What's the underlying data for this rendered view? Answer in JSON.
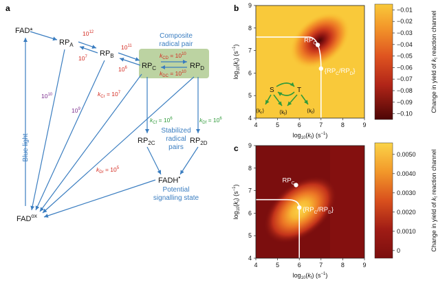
{
  "panel_a": {
    "label": "a",
    "fad_star": "FAD*",
    "fad_ox": "FAD",
    "fad_ox_sup": "ox",
    "rpa": "RP",
    "rpa_sub": "A",
    "rpb": "RP",
    "rpb_sub": "B",
    "rpc": "RP",
    "rpc_sub": "C",
    "rpd": "RP",
    "rpd_sub": "D",
    "rp2c": "RP",
    "rp2c_sub": "2C",
    "rp2d": "RP",
    "rp2d_sub": "2D",
    "fadh": "FADH",
    "fadh_sup": "•",
    "composite_1": "Composite",
    "composite_2": "radical pair",
    "stabilized_1": "Stabilized",
    "stabilized_2": "radical",
    "stabilized_3": "pairs",
    "potential_1": "Potential",
    "potential_2": "signalling state",
    "blue_light": "Blue light",
    "rate_ab": "10",
    "rate_ab_exp": "12",
    "rate_ba": "10",
    "rate_ba_exp": "7",
    "rate_bc": "10",
    "rate_bc_exp": "11",
    "rate_cb": "10",
    "rate_cb_exp": "6",
    "rate_a_ox": "10",
    "rate_a_ox_exp": "10",
    "rate_b_ox": "10",
    "rate_b_ox_exp": "9",
    "kcd": "k",
    "kcd_sub": "CD",
    "kcd_val": " = 10",
    "kcd_exp": "10",
    "kdc": "k",
    "kdc_sub": "DC",
    "kdc_val": " = 10",
    "kdc_exp": "10",
    "kcr": "k",
    "kcr_sub": "Cr",
    "kcr_val": " = 10",
    "kcr_exp": "7",
    "kcf": "k",
    "kcf_sub": "Cf",
    "kcf_val": " = 10",
    "kcf_exp": "6",
    "kdf": "k",
    "kdf_sub": "Df",
    "kdf_val": " = 10",
    "kdf_exp": "6",
    "kdr": "k",
    "kdr_sub": "Dr",
    "kdr_val": " = 10",
    "kdr_exp": "5"
  },
  "chart_data": [
    {
      "panel": "b",
      "type": "heatmap",
      "xlabel": "log10(kf) (s−1)",
      "ylabel": "log10(kr) (s−1)",
      "xlim": [
        4,
        9
      ],
      "ylim": [
        4,
        9
      ],
      "xticks": [
        "4",
        "5",
        "6",
        "7",
        "8",
        "9"
      ],
      "yticks": [
        "4",
        "5",
        "6",
        "7",
        "8",
        "9"
      ],
      "colorbar": {
        "label": "Change in yield of kf reaction channel",
        "ticks": [
          "−0.01",
          "−0.02",
          "−0.03",
          "−0.04",
          "−0.05",
          "−0.06",
          "−0.07",
          "−0.08",
          "−0.09",
          "−0.10"
        ],
        "range": [
          -0.105,
          -0.005
        ],
        "colors": [
          "#f9c93a",
          "#f7b330",
          "#f3972a",
          "#ec7625",
          "#df5420",
          "#cc3a1c",
          "#b12518",
          "#8f1512",
          "#6c0b0b",
          "#4d0505"
        ]
      },
      "points": [
        {
          "label": "RP",
          "sub": "C",
          "x": 6.85,
          "y": 7.25
        },
        {
          "label": "{RP",
          "sub": "C",
          "suffix": "/RP",
          "sub2": "D",
          "suffix2": "}",
          "x": 7.0,
          "y": 6.2
        }
      ],
      "peak": {
        "x": 6.95,
        "y": 7.45
      },
      "inset": {
        "S": "S",
        "T": "T",
        "kr": "⟨k",
        "kr_sub": "r",
        "kf": "⟨k",
        "kf_sub": "f"
      }
    },
    {
      "panel": "c",
      "type": "heatmap",
      "xlabel": "log10(kf) (s−1)",
      "ylabel": "log10(kr) (s−1)",
      "xlim": [
        4,
        9
      ],
      "ylim": [
        4,
        9
      ],
      "xticks": [
        "4",
        "5",
        "6",
        "7",
        "8",
        "9"
      ],
      "yticks": [
        "4",
        "5",
        "6",
        "7",
        "8",
        "9"
      ],
      "colorbar": {
        "label": "Change in yield of kf reaction channel",
        "ticks": [
          "0.0050",
          "0.0040",
          "0.0030",
          "0.0020",
          "0.0010",
          "0"
        ],
        "range": [
          -0.0004,
          0.0056
        ],
        "colors": [
          "#fbd448",
          "#f8b934",
          "#f2982a",
          "#e97423",
          "#d9501d",
          "#c2321a",
          "#a01c15",
          "#7b0e0e"
        ]
      },
      "points": [
        {
          "label": "RP",
          "sub": "C",
          "x": 5.85,
          "y": 7.25
        },
        {
          "label": "{RP",
          "sub": "C",
          "suffix": "/RP",
          "sub2": "D",
          "suffix2": "}",
          "x": 6.0,
          "y": 6.25
        }
      ],
      "peak": {
        "x": 6.05,
        "y": 6.15
      }
    }
  ],
  "colors": {
    "arrow_blue": "#3a7dc0",
    "arrow_green": "#2f9a3a",
    "composite_box": "#bcd3a2",
    "rate_red": "#d42a20"
  }
}
